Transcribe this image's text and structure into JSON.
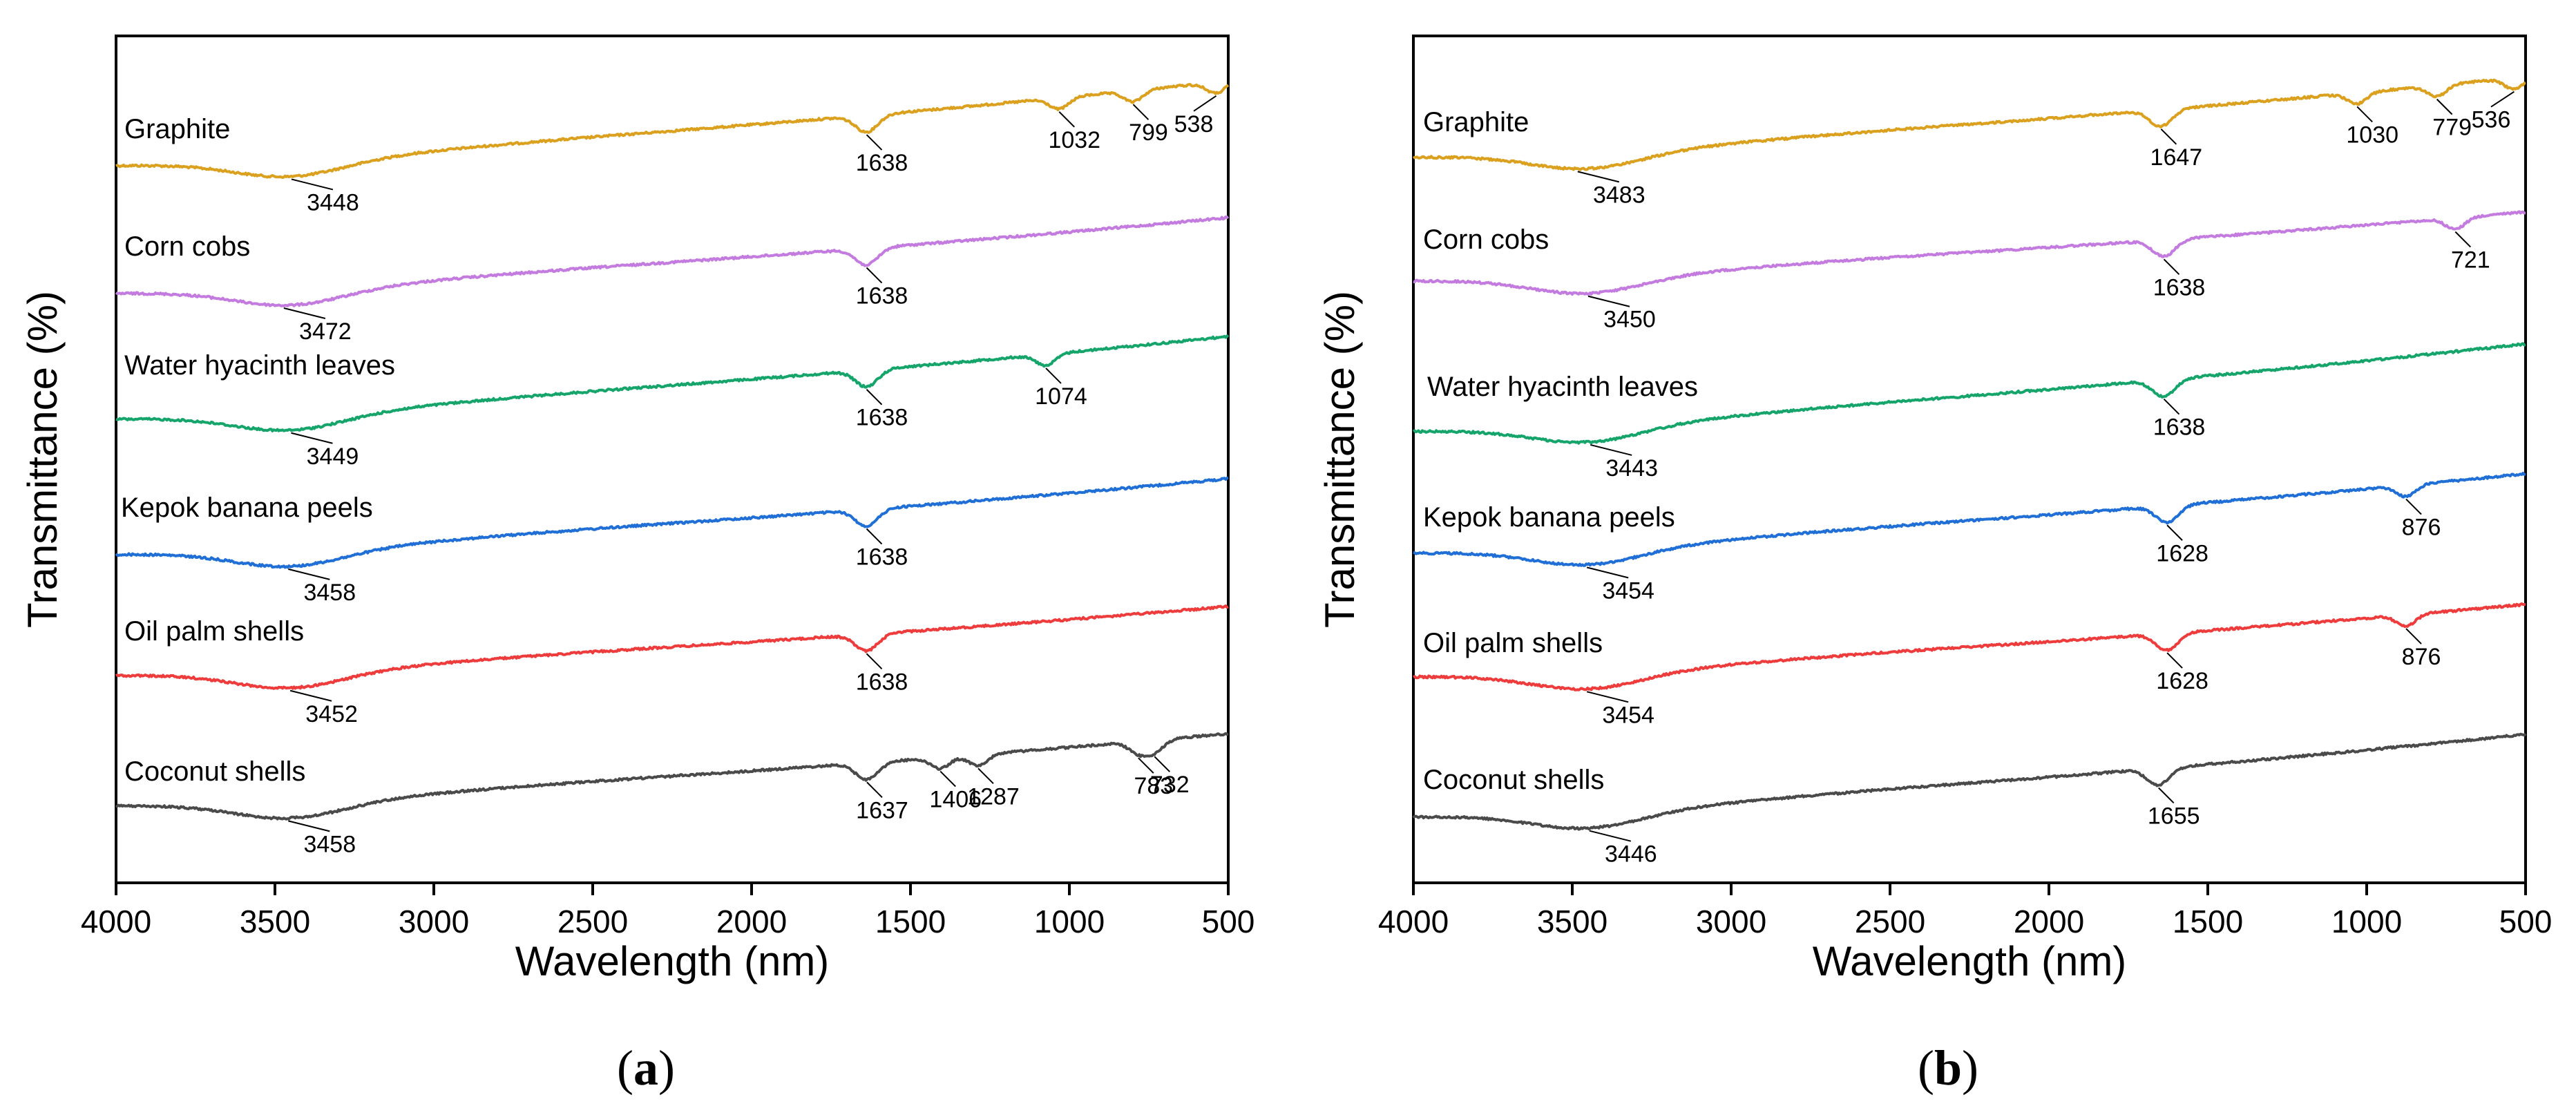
{
  "colors": {
    "Graphite": "#DAA01E",
    "Corn cobs": "#C47BE0",
    "Water hyacinth leaves": "#15A56B",
    "Kepok banana peels": "#1F6FD6",
    "Oil palm shells": "#EE3B3B",
    "Coconut shells": "#4A4A4A"
  },
  "chart_data": [
    {
      "type": "line",
      "panel": "a",
      "panel_label": "a",
      "xlabel": "Wavelength (nm)",
      "ylabel": "Transmittance (%)",
      "xlim": [
        4000,
        500
      ],
      "x_ticks": [
        4000,
        3500,
        3000,
        2500,
        2000,
        1500,
        1000,
        500
      ],
      "y_ticks_shown": false,
      "series": [
        {
          "name": "Graphite",
          "peaks": [
            "3448",
            "1638",
            "1032",
            "799",
            "538"
          ]
        },
        {
          "name": "Corn cobs",
          "peaks": [
            "3472",
            "1638"
          ]
        },
        {
          "name": "Water hyacinth leaves",
          "peaks": [
            "3449",
            "1638",
            "1074"
          ]
        },
        {
          "name": "Kepok banana peels",
          "peaks": [
            "3458",
            "1638"
          ]
        },
        {
          "name": "Oil palm shells",
          "peaks": [
            "3452",
            "1638"
          ]
        },
        {
          "name": "Coconut shells",
          "peaks": [
            "3458",
            "1637",
            "1406",
            "1287",
            "783",
            "732"
          ]
        }
      ]
    },
    {
      "type": "line",
      "panel": "b",
      "panel_label": "b",
      "xlabel": "Wavelength (nm)",
      "ylabel": "Transmittance (%)",
      "xlim": [
        4000,
        500
      ],
      "x_ticks": [
        4000,
        3500,
        3000,
        2500,
        2000,
        1500,
        1000,
        500
      ],
      "y_ticks_shown": false,
      "series": [
        {
          "name": "Graphite",
          "peaks": [
            "3483",
            "1647",
            "1030",
            "779",
            "536"
          ]
        },
        {
          "name": "Corn cobs",
          "peaks": [
            "3450",
            "1638",
            "721"
          ]
        },
        {
          "name": "Water hyacinth leaves",
          "peaks": [
            "3443",
            "1638"
          ]
        },
        {
          "name": "Kepok banana peels",
          "peaks": [
            "3454",
            "1628",
            "876"
          ]
        },
        {
          "name": "Oil palm shells",
          "peaks": [
            "3454",
            "1628",
            "876"
          ]
        },
        {
          "name": "Coconut shells",
          "peaks": [
            "3446",
            "1655"
          ]
        }
      ]
    }
  ]
}
